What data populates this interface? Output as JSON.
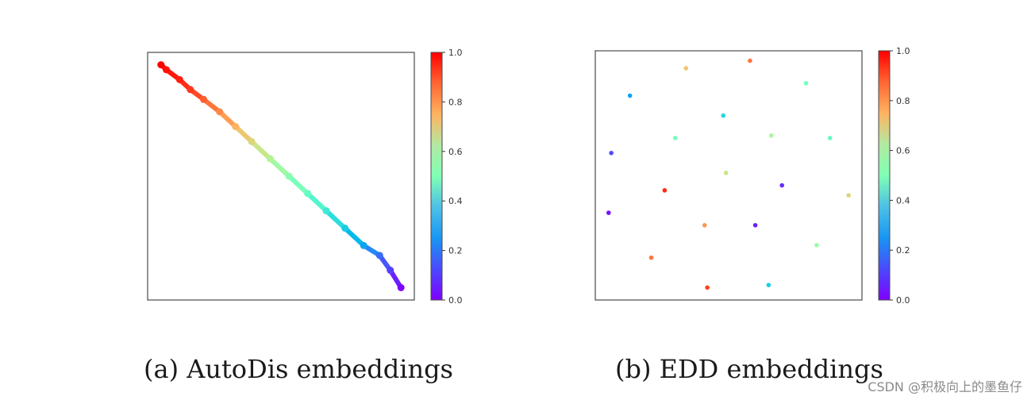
{
  "chart_data": [
    {
      "type": "scatter",
      "caption": "(a)  AutoDis embeddings",
      "colorbar": {
        "ticks": [
          "0.0",
          "0.2",
          "0.4",
          "0.6",
          "0.8",
          "1.0"
        ],
        "range": [
          0,
          1
        ],
        "colormap": "rainbow"
      },
      "points": [
        {
          "x": 0.05,
          "y": 0.95,
          "c": 1.0
        },
        {
          "x": 0.07,
          "y": 0.93,
          "c": 0.98
        },
        {
          "x": 0.12,
          "y": 0.89,
          "c": 0.96
        },
        {
          "x": 0.16,
          "y": 0.85,
          "c": 0.93
        },
        {
          "x": 0.21,
          "y": 0.81,
          "c": 0.88
        },
        {
          "x": 0.27,
          "y": 0.76,
          "c": 0.82
        },
        {
          "x": 0.33,
          "y": 0.7,
          "c": 0.75
        },
        {
          "x": 0.39,
          "y": 0.64,
          "c": 0.68
        },
        {
          "x": 0.46,
          "y": 0.57,
          "c": 0.6
        },
        {
          "x": 0.53,
          "y": 0.5,
          "c": 0.52
        },
        {
          "x": 0.6,
          "y": 0.43,
          "c": 0.45
        },
        {
          "x": 0.67,
          "y": 0.36,
          "c": 0.37
        },
        {
          "x": 0.74,
          "y": 0.29,
          "c": 0.3
        },
        {
          "x": 0.81,
          "y": 0.22,
          "c": 0.22
        },
        {
          "x": 0.87,
          "y": 0.18,
          "c": 0.14
        },
        {
          "x": 0.91,
          "y": 0.12,
          "c": 0.08
        },
        {
          "x": 0.95,
          "y": 0.05,
          "c": 0.0
        }
      ]
    },
    {
      "type": "scatter",
      "caption": "(b)  EDD embeddings",
      "colorbar": {
        "ticks": [
          "0.0",
          "0.2",
          "0.4",
          "0.6",
          "0.8",
          "1.0"
        ],
        "range": [
          0,
          1
        ],
        "colormap": "rainbow"
      },
      "points": [
        {
          "x": 0.58,
          "y": 0.96,
          "c": 0.85
        },
        {
          "x": 0.34,
          "y": 0.93,
          "c": 0.72
        },
        {
          "x": 0.79,
          "y": 0.87,
          "c": 0.48
        },
        {
          "x": 0.13,
          "y": 0.82,
          "c": 0.22
        },
        {
          "x": 0.48,
          "y": 0.74,
          "c": 0.32
        },
        {
          "x": 0.66,
          "y": 0.66,
          "c": 0.58
        },
        {
          "x": 0.3,
          "y": 0.65,
          "c": 0.48
        },
        {
          "x": 0.88,
          "y": 0.65,
          "c": 0.45
        },
        {
          "x": 0.06,
          "y": 0.59,
          "c": 0.1
        },
        {
          "x": 0.49,
          "y": 0.51,
          "c": 0.64
        },
        {
          "x": 0.7,
          "y": 0.46,
          "c": 0.05
        },
        {
          "x": 0.26,
          "y": 0.44,
          "c": 0.95
        },
        {
          "x": 0.95,
          "y": 0.42,
          "c": 0.68
        },
        {
          "x": 0.05,
          "y": 0.35,
          "c": 0.02
        },
        {
          "x": 0.41,
          "y": 0.3,
          "c": 0.8
        },
        {
          "x": 0.6,
          "y": 0.3,
          "c": 0.04
        },
        {
          "x": 0.83,
          "y": 0.22,
          "c": 0.55
        },
        {
          "x": 0.21,
          "y": 0.17,
          "c": 0.85
        },
        {
          "x": 0.42,
          "y": 0.05,
          "c": 0.92
        },
        {
          "x": 0.65,
          "y": 0.06,
          "c": 0.3
        }
      ]
    }
  ],
  "watermark": "CSDN @积极向上的墨鱼仔"
}
